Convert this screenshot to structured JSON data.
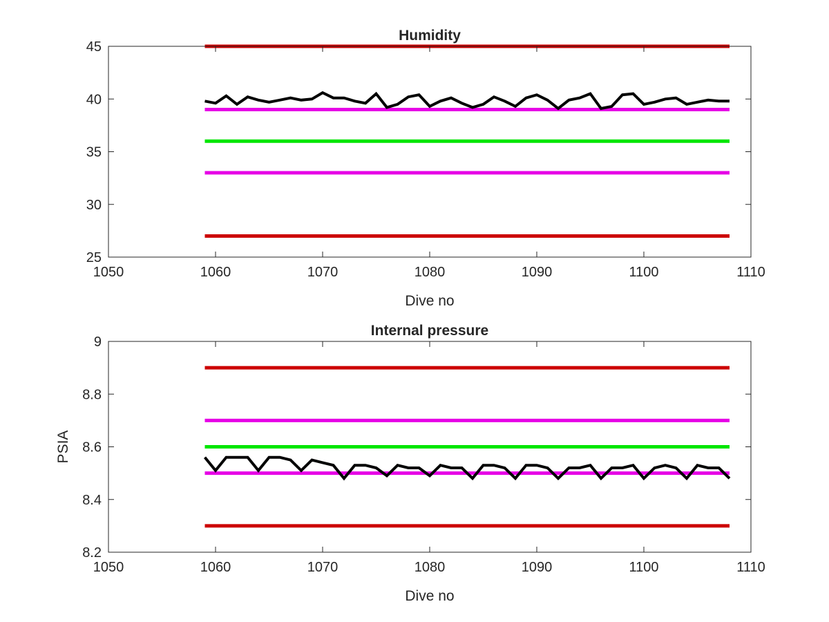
{
  "chart_data": [
    {
      "type": "line",
      "title": "Humidity",
      "xlabel": "Dive no",
      "ylabel": "",
      "xlim": [
        1050,
        1110
      ],
      "ylim": [
        25,
        45
      ],
      "xticks": [
        1050,
        1060,
        1070,
        1080,
        1090,
        1100,
        1110
      ],
      "yticks": [
        25,
        30,
        35,
        40,
        45
      ],
      "grid": false,
      "reference_lines": [
        {
          "y": 45,
          "x_range": [
            1059,
            1108
          ],
          "color": "#cc0000"
        },
        {
          "y": 39,
          "x_range": [
            1059,
            1108
          ],
          "color": "#e600e6"
        },
        {
          "y": 36,
          "x_range": [
            1059,
            1108
          ],
          "color": "#00e600"
        },
        {
          "y": 33,
          "x_range": [
            1059,
            1108
          ],
          "color": "#e600e6"
        },
        {
          "y": 27,
          "x_range": [
            1059,
            1108
          ],
          "color": "#cc0000"
        }
      ],
      "series": [
        {
          "color": "#000000",
          "x": [
            1059,
            1060,
            1061,
            1062,
            1063,
            1064,
            1065,
            1066,
            1067,
            1068,
            1069,
            1070,
            1071,
            1072,
            1073,
            1074,
            1075,
            1076,
            1077,
            1078,
            1079,
            1080,
            1081,
            1082,
            1083,
            1084,
            1085,
            1086,
            1087,
            1088,
            1089,
            1090,
            1091,
            1092,
            1093,
            1094,
            1095,
            1096,
            1097,
            1098,
            1099,
            1100,
            1101,
            1102,
            1103,
            1104,
            1105,
            1106,
            1107,
            1108
          ],
          "y": [
            39.8,
            39.6,
            40.3,
            39.5,
            40.2,
            39.9,
            39.7,
            39.9,
            40.1,
            39.9,
            40.0,
            40.6,
            40.1,
            40.1,
            39.8,
            39.6,
            40.5,
            39.2,
            39.5,
            40.2,
            40.4,
            39.3,
            39.8,
            40.1,
            39.6,
            39.2,
            39.5,
            40.2,
            39.8,
            39.3,
            40.1,
            40.4,
            39.9,
            39.1,
            39.9,
            40.1,
            40.5,
            39.1,
            39.3,
            40.4,
            40.5,
            39.5,
            39.7,
            40.0,
            40.1,
            39.5,
            39.7,
            39.9,
            39.8,
            39.8
          ]
        }
      ]
    },
    {
      "type": "line",
      "title": "Internal pressure",
      "xlabel": "Dive no",
      "ylabel": "PSIA",
      "xlim": [
        1050,
        1110
      ],
      "ylim": [
        8.2,
        9
      ],
      "xticks": [
        1050,
        1060,
        1070,
        1080,
        1090,
        1100,
        1110
      ],
      "yticks": [
        8.2,
        8.4,
        8.6,
        8.8,
        9
      ],
      "grid": false,
      "reference_lines": [
        {
          "y": 8.9,
          "x_range": [
            1059,
            1108
          ],
          "color": "#cc0000"
        },
        {
          "y": 8.7,
          "x_range": [
            1059,
            1108
          ],
          "color": "#e600e6"
        },
        {
          "y": 8.6,
          "x_range": [
            1059,
            1108
          ],
          "color": "#00e600"
        },
        {
          "y": 8.5,
          "x_range": [
            1059,
            1108
          ],
          "color": "#e600e6"
        },
        {
          "y": 8.3,
          "x_range": [
            1059,
            1108
          ],
          "color": "#cc0000"
        }
      ],
      "series": [
        {
          "color": "#000000",
          "x": [
            1059,
            1060,
            1061,
            1062,
            1063,
            1064,
            1065,
            1066,
            1067,
            1068,
            1069,
            1070,
            1071,
            1072,
            1073,
            1074,
            1075,
            1076,
            1077,
            1078,
            1079,
            1080,
            1081,
            1082,
            1083,
            1084,
            1085,
            1086,
            1087,
            1088,
            1089,
            1090,
            1091,
            1092,
            1093,
            1094,
            1095,
            1096,
            1097,
            1098,
            1099,
            1100,
            1101,
            1102,
            1103,
            1104,
            1105,
            1106,
            1107,
            1108
          ],
          "y": [
            8.56,
            8.51,
            8.56,
            8.56,
            8.56,
            8.51,
            8.56,
            8.56,
            8.55,
            8.51,
            8.55,
            8.54,
            8.53,
            8.48,
            8.53,
            8.53,
            8.52,
            8.49,
            8.53,
            8.52,
            8.52,
            8.49,
            8.53,
            8.52,
            8.52,
            8.48,
            8.53,
            8.53,
            8.52,
            8.48,
            8.53,
            8.53,
            8.52,
            8.48,
            8.52,
            8.52,
            8.53,
            8.48,
            8.52,
            8.52,
            8.53,
            8.48,
            8.52,
            8.53,
            8.52,
            8.48,
            8.53,
            8.52,
            8.52,
            8.48
          ]
        }
      ]
    }
  ]
}
